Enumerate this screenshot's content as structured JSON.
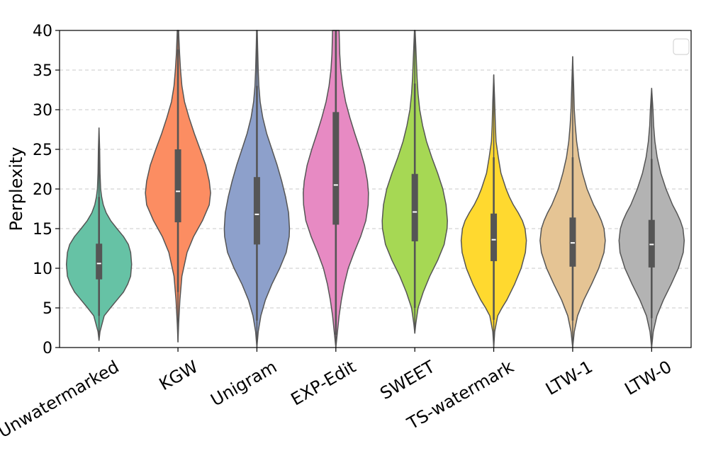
{
  "chart_data": {
    "type": "violin",
    "title": "",
    "xlabel": "",
    "ylabel": "Perplexity",
    "ylim": [
      0,
      40
    ],
    "yticks": [
      0,
      5,
      10,
      15,
      20,
      25,
      30,
      35,
      40
    ],
    "ytick_labels": [
      "0",
      "5",
      "10",
      "15",
      "20",
      "25",
      "30",
      "35",
      "40"
    ],
    "grid": "y-dashed",
    "legend": {
      "placement": "top-right",
      "entries": []
    },
    "categories": [
      "Unwatermarked",
      "KGW",
      "Unigram",
      "EXP-Edit",
      "SWEET",
      "TS-watermark",
      "LTW-1",
      "LTW-0"
    ],
    "series": [
      {
        "name": "Unwatermarked",
        "color": "#66c2a5",
        "min": 0.9,
        "max": 27.7,
        "q1": 8.6,
        "median": 10.6,
        "q3": 13.1,
        "whisker_low": 4.0,
        "whisker_high": 19.0,
        "density": [
          [
            0.9,
            0.0
          ],
          [
            2,
            0.03
          ],
          [
            4,
            0.16
          ],
          [
            5,
            0.35
          ],
          [
            6,
            0.55
          ],
          [
            7,
            0.75
          ],
          [
            8,
            0.88
          ],
          [
            9,
            0.97
          ],
          [
            10.5,
            1.0
          ],
          [
            12,
            0.97
          ],
          [
            13,
            0.9
          ],
          [
            14,
            0.75
          ],
          [
            15,
            0.55
          ],
          [
            16,
            0.36
          ],
          [
            17,
            0.22
          ],
          [
            18,
            0.13
          ],
          [
            19,
            0.08
          ],
          [
            20,
            0.05
          ],
          [
            22,
            0.03
          ],
          [
            25,
            0.02
          ],
          [
            27.7,
            0.0
          ]
        ]
      },
      {
        "name": "KGW",
        "color": "#fc8d62",
        "min": 0.7,
        "max": 40,
        "q1": 15.8,
        "median": 19.7,
        "q3": 25.0,
        "whisker_low": 7.0,
        "whisker_high": 37.6,
        "density": [
          [
            0.7,
            0.0
          ],
          [
            3,
            0.02
          ],
          [
            6,
            0.06
          ],
          [
            9,
            0.12
          ],
          [
            12,
            0.28
          ],
          [
            14,
            0.48
          ],
          [
            16,
            0.75
          ],
          [
            18,
            0.96
          ],
          [
            19.5,
            1.0
          ],
          [
            21,
            0.96
          ],
          [
            23,
            0.85
          ],
          [
            25,
            0.68
          ],
          [
            27,
            0.5
          ],
          [
            29,
            0.34
          ],
          [
            31,
            0.2
          ],
          [
            33,
            0.12
          ],
          [
            35,
            0.08
          ],
          [
            37,
            0.05
          ],
          [
            39,
            0.03
          ],
          [
            40,
            0.02
          ]
        ]
      },
      {
        "name": "Unigram",
        "color": "#8da0cb",
        "min": 0.0,
        "max": 40,
        "q1": 13.0,
        "median": 16.8,
        "q3": 21.5,
        "whisker_low": 3.4,
        "whisker_high": 33.0,
        "density": [
          [
            0,
            0.0
          ],
          [
            2,
            0.04
          ],
          [
            4,
            0.12
          ],
          [
            6,
            0.26
          ],
          [
            8,
            0.46
          ],
          [
            10,
            0.7
          ],
          [
            12,
            0.9
          ],
          [
            14,
            0.99
          ],
          [
            15,
            1.0
          ],
          [
            17,
            0.97
          ],
          [
            19,
            0.88
          ],
          [
            21,
            0.76
          ],
          [
            23,
            0.62
          ],
          [
            25,
            0.46
          ],
          [
            27,
            0.3
          ],
          [
            29,
            0.18
          ],
          [
            31,
            0.1
          ],
          [
            33,
            0.06
          ],
          [
            35,
            0.04
          ],
          [
            38,
            0.02
          ],
          [
            40,
            0.01
          ]
        ]
      },
      {
        "name": "EXP-Edit",
        "color": "#e78ac3",
        "min": 0.0,
        "max": 40,
        "q1": 15.5,
        "median": 20.5,
        "q3": 29.7,
        "whisker_low": 1.6,
        "whisker_high": 40,
        "density": [
          [
            0,
            0.0
          ],
          [
            2,
            0.05
          ],
          [
            4,
            0.1
          ],
          [
            6,
            0.17
          ],
          [
            8,
            0.26
          ],
          [
            10,
            0.38
          ],
          [
            12,
            0.56
          ],
          [
            14,
            0.76
          ],
          [
            16,
            0.92
          ],
          [
            18,
            0.99
          ],
          [
            19.5,
            1.0
          ],
          [
            21,
            0.97
          ],
          [
            23,
            0.88
          ],
          [
            25,
            0.74
          ],
          [
            27,
            0.58
          ],
          [
            29,
            0.43
          ],
          [
            31,
            0.3
          ],
          [
            33,
            0.21
          ],
          [
            35,
            0.15
          ],
          [
            37,
            0.12
          ],
          [
            40,
            0.1
          ]
        ]
      },
      {
        "name": "SWEET",
        "color": "#a6d854",
        "min": 1.8,
        "max": 40,
        "q1": 13.4,
        "median": 17.1,
        "q3": 21.9,
        "whisker_low": 5.0,
        "whisker_high": 33.3,
        "density": [
          [
            1.8,
            0.0
          ],
          [
            3,
            0.03
          ],
          [
            5,
            0.1
          ],
          [
            7,
            0.26
          ],
          [
            9,
            0.46
          ],
          [
            11,
            0.7
          ],
          [
            13,
            0.9
          ],
          [
            15,
            0.99
          ],
          [
            16,
            1.0
          ],
          [
            18,
            0.96
          ],
          [
            20,
            0.86
          ],
          [
            22,
            0.7
          ],
          [
            24,
            0.52
          ],
          [
            26,
            0.36
          ],
          [
            28,
            0.24
          ],
          [
            30,
            0.15
          ],
          [
            32,
            0.1
          ],
          [
            34,
            0.07
          ],
          [
            36,
            0.05
          ],
          [
            38,
            0.03
          ],
          [
            40,
            0.01
          ]
        ]
      },
      {
        "name": "TS-watermark",
        "color": "#ffd92f",
        "min": 0.0,
        "max": 34.4,
        "q1": 10.9,
        "median": 13.6,
        "q3": 16.9,
        "whisker_low": 3.5,
        "whisker_high": 24.0,
        "density": [
          [
            0,
            0.0
          ],
          [
            2,
            0.03
          ],
          [
            4,
            0.12
          ],
          [
            5,
            0.25
          ],
          [
            6,
            0.4
          ],
          [
            8,
            0.64
          ],
          [
            10,
            0.84
          ],
          [
            12,
            0.97
          ],
          [
            13.5,
            1.0
          ],
          [
            15,
            0.96
          ],
          [
            16,
            0.88
          ],
          [
            17,
            0.75
          ],
          [
            18,
            0.6
          ],
          [
            19,
            0.48
          ],
          [
            20,
            0.38
          ],
          [
            22,
            0.22
          ],
          [
            24,
            0.14
          ],
          [
            26,
            0.07
          ],
          [
            28,
            0.05
          ],
          [
            31,
            0.03
          ],
          [
            34.4,
            0.0
          ]
        ]
      },
      {
        "name": "LTW-1",
        "color": "#e5c494",
        "min": 0.0,
        "max": 36.7,
        "q1": 10.2,
        "median": 13.2,
        "q3": 16.4,
        "whisker_low": 3.4,
        "whisker_high": 24.0,
        "density": [
          [
            0,
            0.0
          ],
          [
            2,
            0.05
          ],
          [
            4,
            0.15
          ],
          [
            6,
            0.34
          ],
          [
            8,
            0.58
          ],
          [
            10,
            0.8
          ],
          [
            12,
            0.96
          ],
          [
            13.5,
            1.0
          ],
          [
            15,
            0.96
          ],
          [
            16,
            0.88
          ],
          [
            17,
            0.77
          ],
          [
            18,
            0.64
          ],
          [
            20,
            0.44
          ],
          [
            22,
            0.3
          ],
          [
            24,
            0.19
          ],
          [
            26,
            0.12
          ],
          [
            28,
            0.08
          ],
          [
            30,
            0.05
          ],
          [
            33,
            0.03
          ],
          [
            36.7,
            0.0
          ]
        ]
      },
      {
        "name": "LTW-0",
        "color": "#b3b3b3",
        "min": 0.0,
        "max": 32.7,
        "q1": 10.1,
        "median": 13.0,
        "q3": 16.1,
        "whisker_low": 3.7,
        "whisker_high": 23.8,
        "density": [
          [
            0,
            0.0
          ],
          [
            2,
            0.05
          ],
          [
            4,
            0.16
          ],
          [
            6,
            0.36
          ],
          [
            8,
            0.6
          ],
          [
            10,
            0.82
          ],
          [
            12,
            0.97
          ],
          [
            13.5,
            1.0
          ],
          [
            15,
            0.96
          ],
          [
            16,
            0.88
          ],
          [
            17,
            0.77
          ],
          [
            18,
            0.64
          ],
          [
            20,
            0.44
          ],
          [
            22,
            0.28
          ],
          [
            24,
            0.17
          ],
          [
            26,
            0.1
          ],
          [
            28,
            0.06
          ],
          [
            30,
            0.04
          ],
          [
            32.7,
            0.0
          ]
        ]
      }
    ]
  }
}
